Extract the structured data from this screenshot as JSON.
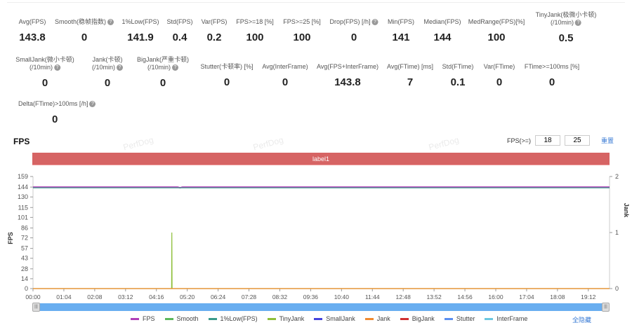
{
  "stats_row1": [
    {
      "label": "Avg(FPS)",
      "value": "143.8",
      "help": false
    },
    {
      "label": "Smooth(稳帧指数)",
      "value": "0",
      "help": true
    },
    {
      "label": "1%Low(FPS)",
      "value": "141.9",
      "help": false
    },
    {
      "label": "Std(FPS)",
      "value": "0.4",
      "help": false
    },
    {
      "label": "Var(FPS)",
      "value": "0.2",
      "help": false
    },
    {
      "label": "FPS>=18 [%]",
      "value": "100",
      "help": false
    },
    {
      "label": "FPS>=25 [%]",
      "value": "100",
      "help": false
    },
    {
      "label": "Drop(FPS) [/h]",
      "value": "0",
      "help": true
    },
    {
      "label": "Min(FPS)",
      "value": "141",
      "help": false
    },
    {
      "label": "Median(FPS)",
      "value": "144",
      "help": false
    },
    {
      "label": "MedRange(FPS)[%]",
      "value": "100",
      "help": false
    },
    {
      "label": "TinyJank(极微小卡顿)",
      "label2": "(/10min)",
      "value": "0.5",
      "help": true
    }
  ],
  "stats_row2": [
    {
      "label": "SmallJank(微小卡顿)",
      "label2": "(/10min)",
      "value": "0",
      "help": true
    },
    {
      "label": "Jank(卡顿)",
      "label2": "(/10min)",
      "value": "0",
      "help": true
    },
    {
      "label": "BigJank(严重卡顿)",
      "label2": "(/10min)",
      "value": "0",
      "help": true
    },
    {
      "label": "Stutter(卡顿率) [%]",
      "value": "0",
      "help": false
    },
    {
      "label": "Avg(InterFrame)",
      "value": "0",
      "help": false
    },
    {
      "label": "Avg(FPS+InterFrame)",
      "value": "143.8",
      "help": false
    },
    {
      "label": "Avg(FTime) [ms]",
      "value": "7",
      "help": false
    },
    {
      "label": "Std(FTime)",
      "value": "0.1",
      "help": false
    },
    {
      "label": "Var(FTime)",
      "value": "0",
      "help": false
    },
    {
      "label": "FTime>=100ms [%]",
      "value": "0",
      "help": false
    }
  ],
  "stats_row3": [
    {
      "label": "Delta(FTime)>100ms [/h]",
      "value": "0",
      "help": true
    }
  ],
  "chart_title": "FPS",
  "fps_threshold_label": "FPS(>=)",
  "fps_threshold_1": "18",
  "fps_threshold_2": "25",
  "reset_label": "重置",
  "label_bar": "label1",
  "watermark": "PerfDog",
  "hide_all_label": "全隐藏",
  "chart_data": {
    "type": "line",
    "ylabel": "FPS",
    "ylabel_right": "Jank",
    "yticks": [
      0,
      14,
      28,
      43,
      57,
      72,
      86,
      101,
      115,
      130,
      144,
      159
    ],
    "yticks_right": [
      0,
      1,
      2
    ],
    "ylim": [
      0,
      159
    ],
    "ylim_right": [
      0,
      2
    ],
    "xticks": [
      "00:00",
      "01:04",
      "02:08",
      "03:12",
      "04:16",
      "05:20",
      "06:24",
      "07:28",
      "08:32",
      "09:36",
      "10:40",
      "11:44",
      "12:48",
      "13:52",
      "14:56",
      "16:00",
      "17:04",
      "18:08",
      "19:12"
    ],
    "xlim_min": [
      0,
      1196
    ],
    "series": [
      {
        "name": "FPS",
        "color": "#b040b8",
        "axis": "left",
        "points": [
          [
            0,
            144
          ],
          [
            300,
            144
          ],
          [
            305,
            143
          ],
          [
            310,
            144
          ],
          [
            900,
            144
          ],
          [
            1196,
            144
          ]
        ]
      },
      {
        "name": "Smooth",
        "color": "#5cb85c",
        "axis": "left",
        "points": []
      },
      {
        "name": "1%Low(FPS)",
        "color": "#3a9a8a",
        "axis": "left",
        "points": [
          [
            0,
            143
          ],
          [
            1196,
            143
          ]
        ]
      },
      {
        "name": "TinyJank",
        "color": "#8ebf3a",
        "axis": "right",
        "points": [
          [
            0,
            0
          ],
          [
            287.5,
            0
          ],
          [
            288,
            1
          ],
          [
            288.5,
            0
          ],
          [
            1196,
            0
          ]
        ]
      },
      {
        "name": "SmallJank",
        "color": "#4444dd",
        "axis": "right",
        "points": []
      },
      {
        "name": "Jank",
        "color": "#f08a30",
        "axis": "right",
        "points": [
          [
            0,
            0
          ],
          [
            1196,
            0
          ]
        ]
      },
      {
        "name": "BigJank",
        "color": "#d03030",
        "axis": "right",
        "points": []
      },
      {
        "name": "Stutter",
        "color": "#5b8ff0",
        "axis": "right",
        "points": []
      },
      {
        "name": "InterFrame",
        "color": "#6cc8e0",
        "axis": "right",
        "points": []
      }
    ]
  }
}
